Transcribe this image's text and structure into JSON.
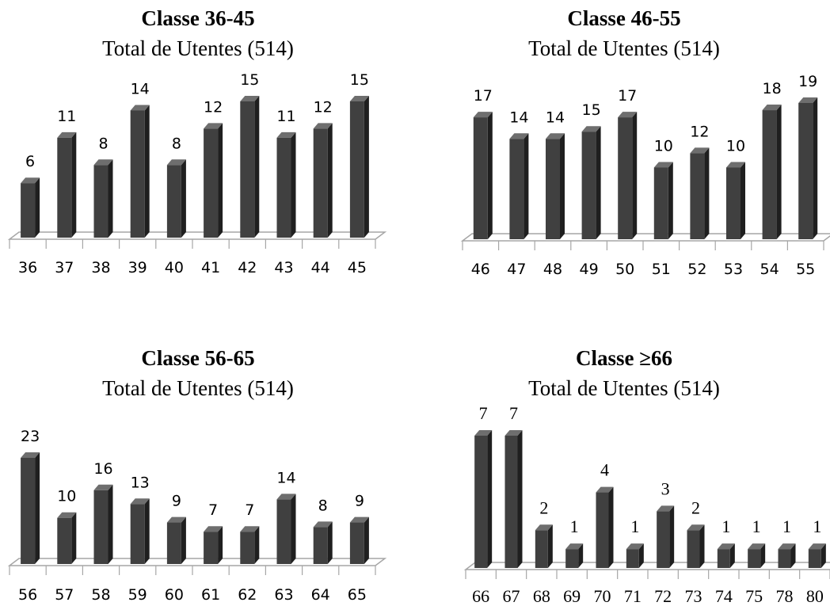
{
  "colors": {
    "bar_front": "#404040",
    "bar_side": "#1f1f1f",
    "bar_top": "#6e6e6e",
    "floor_line": "#a6a6a6"
  },
  "chart_data": [
    {
      "type": "bar",
      "title": "Classe 36-45",
      "subtitle": "Total de Utentes (514)",
      "categories": [
        "36",
        "37",
        "38",
        "39",
        "40",
        "41",
        "42",
        "43",
        "44",
        "45"
      ],
      "values": [
        6,
        11,
        8,
        14,
        8,
        12,
        15,
        11,
        12,
        15
      ],
      "ylim": [
        0,
        15
      ],
      "grid": false,
      "legend": "none"
    },
    {
      "type": "bar",
      "title": "Classe 46-55",
      "subtitle": "Total de Utentes (514)",
      "categories": [
        "46",
        "47",
        "48",
        "49",
        "50",
        "51",
        "52",
        "53",
        "54",
        "55"
      ],
      "values": [
        17,
        14,
        14,
        15,
        17,
        10,
        12,
        10,
        18,
        19
      ],
      "ylim": [
        0,
        19
      ],
      "grid": false,
      "legend": "none"
    },
    {
      "type": "bar",
      "title": "Classe 56-65",
      "subtitle": "Total de Utentes (514)",
      "categories": [
        "56",
        "57",
        "58",
        "59",
        "60",
        "61",
        "62",
        "63",
        "64",
        "65"
      ],
      "values": [
        23,
        10,
        16,
        13,
        9,
        7,
        7,
        14,
        8,
        9
      ],
      "ylim": [
        0,
        23
      ],
      "grid": false,
      "legend": "none"
    },
    {
      "type": "bar",
      "title": "Classe  ≥66",
      "subtitle": "Total de Utentes (514)",
      "categories": [
        "66",
        "67",
        "68",
        "69",
        "70",
        "71",
        "72",
        "73",
        "74",
        "75",
        "78",
        "80"
      ],
      "values": [
        7,
        7,
        2,
        1,
        4,
        1,
        3,
        2,
        1,
        1,
        1,
        1
      ],
      "ylim": [
        0,
        7
      ],
      "grid": false,
      "legend": "none"
    }
  ]
}
